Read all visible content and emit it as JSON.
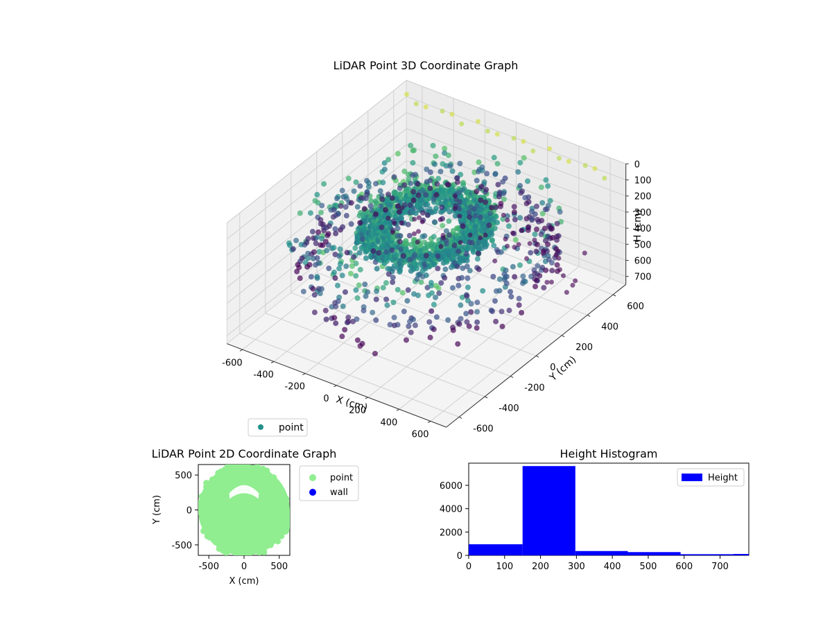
{
  "chart_data": [
    {
      "type": "scatter",
      "projection": "3d",
      "title": "LiDAR Point 3D Coordinate Graph",
      "xlabel": "X (cm)",
      "ylabel": "Y (cm)",
      "zlabel": "H (cm)",
      "xlim": [
        -700,
        700
      ],
      "ylim": [
        -700,
        700
      ],
      "zlim": [
        750,
        0
      ],
      "xticks": [
        -600,
        -400,
        -200,
        0,
        200,
        400,
        600
      ],
      "yticks": [
        -600,
        -400,
        -200,
        0,
        200,
        400,
        600
      ],
      "zticks": [
        0,
        100,
        200,
        300,
        400,
        500,
        600,
        700
      ],
      "grid": true,
      "colormap": "viridis",
      "legend": {
        "placement": "below",
        "entries": [
          {
            "name": "point",
            "color": "#21918c"
          }
        ]
      },
      "points": {
        "outer_ring_top_height": 30,
        "dense_inner_ring": {
          "radius_min": 180,
          "radius_max": 350,
          "height_min": 150,
          "height_max": 260
        },
        "scattered_field": {
          "radius_max": 680,
          "height_min": 120,
          "height_max": 420
        },
        "wall_points": {
          "radius_min": 560,
          "radius_max": 680,
          "height_min": 300,
          "height_max": 520
        }
      }
    },
    {
      "type": "scatter",
      "title": "LiDAR Point 2D Coordinate Graph",
      "xlabel": "X (cm)",
      "ylabel": "Y (cm)",
      "xlim": [
        -650,
        650
      ],
      "ylim": [
        -650,
        650
      ],
      "xticks": [
        -500,
        0,
        500
      ],
      "yticks": [
        -500,
        0,
        500
      ],
      "legend": {
        "placement": "outside-right",
        "entries": [
          {
            "name": "point",
            "color": "#90ee90"
          },
          {
            "name": "wall",
            "color": "#0000ff"
          }
        ]
      },
      "series": [
        {
          "name": "point",
          "color": "#90ee90",
          "coverage": "filled-circle",
          "radius": 650,
          "hole_center": [
            0,
            220
          ],
          "hole_radius": 190
        },
        {
          "name": "wall",
          "color": "#0000ff",
          "values": []
        }
      ]
    },
    {
      "type": "bar",
      "title": "Height Histogram",
      "xlabel": "",
      "ylabel": "",
      "xlim": [
        0,
        780
      ],
      "ylim": [
        0,
        7900
      ],
      "xticks": [
        0,
        100,
        200,
        300,
        400,
        500,
        600,
        700
      ],
      "yticks": [
        0,
        2000,
        4000,
        6000
      ],
      "legend": {
        "placement": "top-right",
        "entries": [
          {
            "name": "Height",
            "color": "#0000ff"
          }
        ]
      },
      "bins": [
        {
          "start": 0,
          "end": 150,
          "count": 950
        },
        {
          "start": 150,
          "end": 297,
          "count": 7650
        },
        {
          "start": 297,
          "end": 443,
          "count": 370
        },
        {
          "start": 443,
          "end": 590,
          "count": 280
        },
        {
          "start": 590,
          "end": 737,
          "count": 100
        },
        {
          "start": 737,
          "end": 780,
          "count": 120
        }
      ]
    }
  ]
}
